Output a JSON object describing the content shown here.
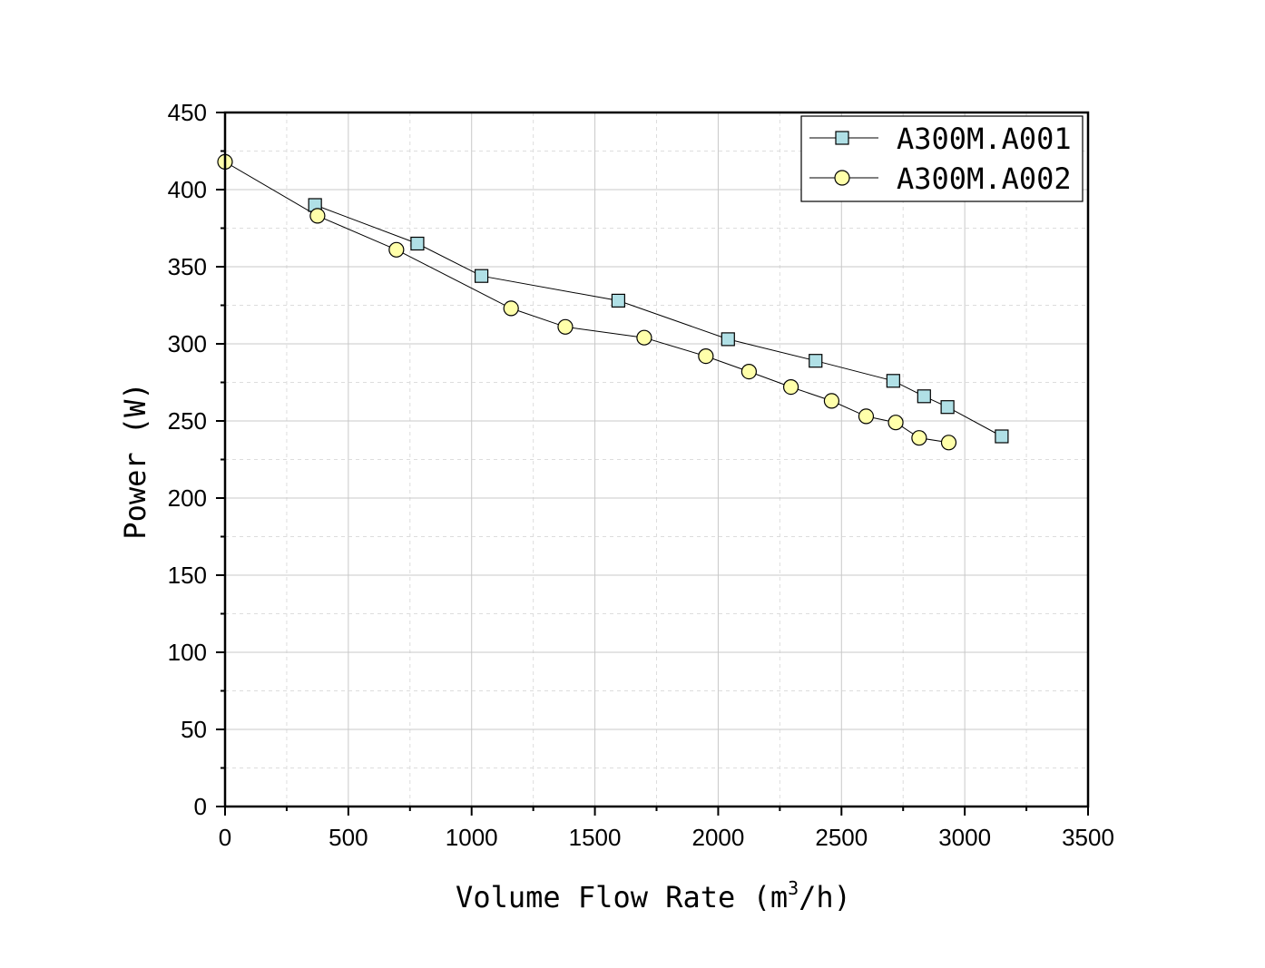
{
  "chart_data": {
    "type": "line",
    "xlabel": "Volume Flow Rate (m",
    "xlabel_sup": "3",
    "xlabel_tail": "/h)",
    "ylabel": "Power (W)",
    "xlim": [
      0,
      3500
    ],
    "ylim": [
      0,
      450
    ],
    "x_ticks": [
      0,
      500,
      1000,
      1500,
      2000,
      2500,
      3000,
      3500
    ],
    "y_ticks": [
      0,
      50,
      100,
      150,
      200,
      250,
      300,
      350,
      400,
      450
    ],
    "grid": true,
    "legend_position": "top-right",
    "series": [
      {
        "name": "A300M.A001",
        "marker": "square",
        "color": "#b0e0e6",
        "x": [
          365,
          780,
          1040,
          1595,
          2040,
          2395,
          2710,
          2835,
          2930,
          3150
        ],
        "y": [
          390,
          365,
          344,
          328,
          303,
          289,
          276,
          266,
          259,
          240
        ]
      },
      {
        "name": "A300M.A002",
        "marker": "circle",
        "color": "#ffffaa",
        "x": [
          0,
          375,
          695,
          1160,
          1380,
          1700,
          1950,
          2125,
          2295,
          2460,
          2600,
          2720,
          2815,
          2935
        ],
        "y": [
          418,
          383,
          361,
          323,
          311,
          304,
          292,
          282,
          272,
          263,
          253,
          249,
          239,
          236
        ]
      }
    ]
  }
}
